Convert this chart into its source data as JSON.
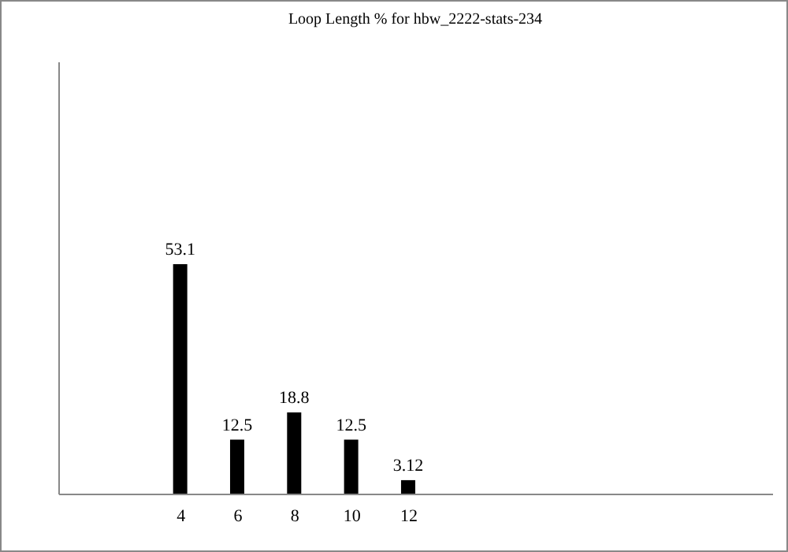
{
  "chart_data": {
    "type": "bar",
    "title": "Loop Length % for hbw_2222-stats-234",
    "x": [
      4,
      6,
      8,
      10,
      12
    ],
    "values": [
      53.1,
      12.5,
      18.8,
      12.5,
      3.12
    ],
    "color": "#000000",
    "xlim": [
      0,
      24.5
    ],
    "xticks": [
      4,
      6,
      8,
      10,
      12
    ],
    "ylim": [
      0,
      100
    ],
    "tick_labels": "x",
    "data_labels": true,
    "grid": false
  }
}
